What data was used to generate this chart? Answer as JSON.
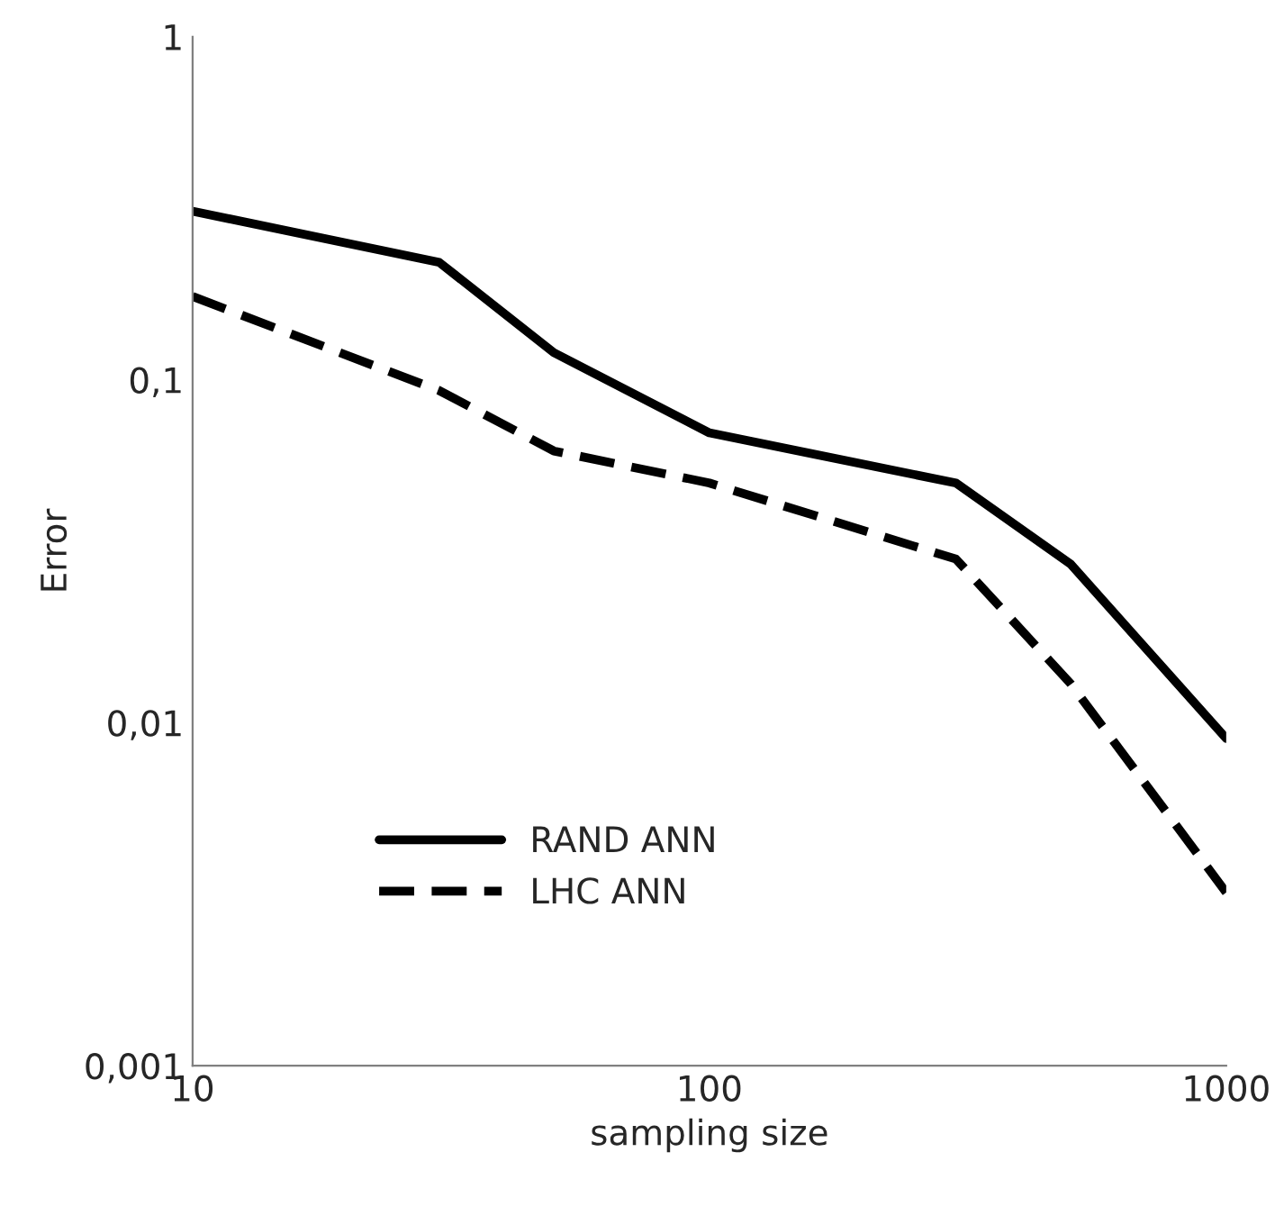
{
  "chart_data": {
    "type": "line",
    "xlabel": "sampling size",
    "ylabel": "Error",
    "log": "xy",
    "x": [
      10,
      30,
      50,
      100,
      300,
      500,
      1000
    ],
    "series": [
      {
        "name": "RAND ANN",
        "color": "#000000",
        "line_style": "solid",
        "values": [
          0.31,
          0.22,
          0.12,
          0.07,
          0.05,
          0.029,
          0.009
        ]
      },
      {
        "name": "LHC ANN",
        "color": "#000000",
        "line_style": "dashed",
        "values": [
          0.175,
          0.093,
          0.062,
          0.05,
          0.03,
          0.013,
          0.0032
        ]
      }
    ],
    "xlim": [
      10,
      1000
    ],
    "ylim": [
      0.001,
      1
    ],
    "xticks": [
      10,
      100,
      1000
    ],
    "yticks": [
      {
        "value": 0.001,
        "label": "0,001"
      },
      {
        "value": 0.01,
        "label": "0,01"
      },
      {
        "value": 0.1,
        "label": "0,1"
      },
      1
    ],
    "grid": false,
    "legend": "bottom left",
    "marker": "none"
  }
}
